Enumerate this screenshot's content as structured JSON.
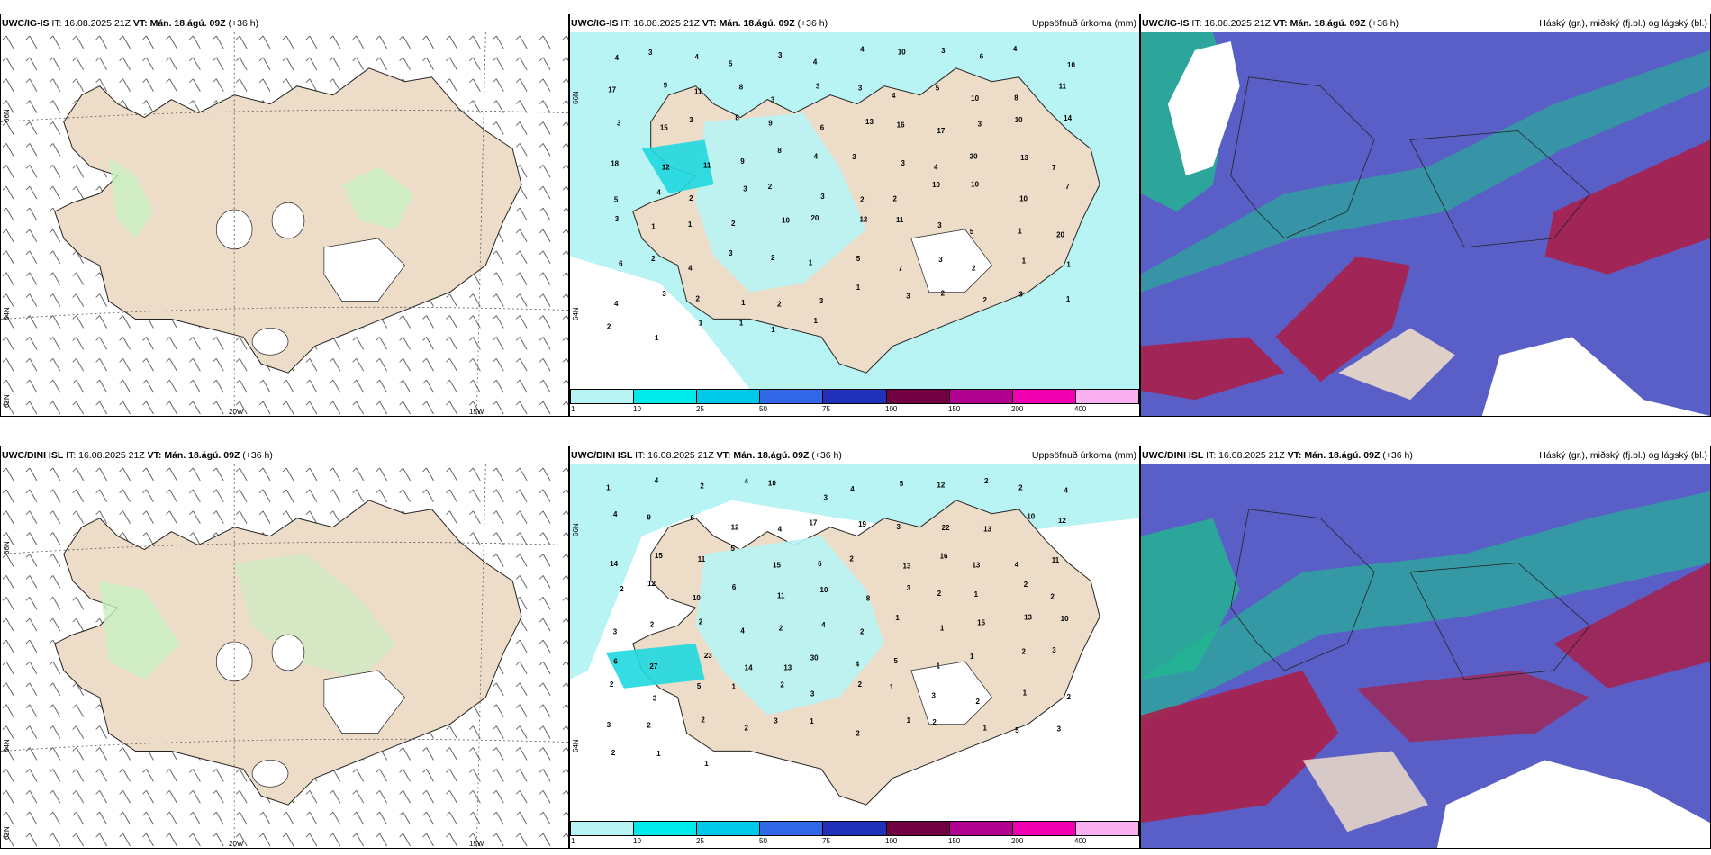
{
  "colors": {
    "land": "#ecdcc8",
    "sea_white": "#ffffff",
    "precip_light": "#b8f4f4",
    "green_precip": "#c8f0c0",
    "cloud_low": "#5a5fc8",
    "cloud_mid": "#20b890",
    "cloud_high": "#a8204a"
  },
  "rows": [
    {
      "panels": [
        {
          "type": "wind",
          "model": "UWC/IG-IS",
          "it": "IT: 16.08.2025 21Z",
          "vt": "VT: Mán. 18.ágú. 09Z",
          "lead": "(+36 h)",
          "right_title": "",
          "lat_labels": [
            "66N",
            "64N",
            "62N"
          ],
          "lon_labels": [
            "20W",
            "15W"
          ]
        },
        {
          "type": "precip",
          "model": "UWC/IG-IS",
          "it": "IT: 16.08.2025 21Z",
          "vt": "VT: Mán. 18.ágú. 09Z",
          "lead": "(+36 h)",
          "right_title": "Uppsöfnuð úrkoma (mm)",
          "lat_labels": [
            "66N",
            "64N"
          ],
          "legend_ticks": [
            "1",
            "10",
            "25",
            "50",
            "75",
            "100",
            "150",
            "200",
            "400"
          ],
          "values": [
            "4",
            "3",
            "4",
            "5",
            "3",
            "4",
            "4",
            "10",
            "3",
            "6",
            "4",
            "10",
            "17",
            "9",
            "11",
            "8",
            "3",
            "3",
            "3",
            "4",
            "5",
            "10",
            "8",
            "11",
            "3",
            "15",
            "3",
            "8",
            "9",
            "6",
            "13",
            "16",
            "17",
            "3",
            "10",
            "14",
            "18",
            "12",
            "11",
            "9",
            "8",
            "4",
            "3",
            "3",
            "4",
            "20",
            "13",
            "7",
            "5",
            "4",
            "2",
            "3",
            "2",
            "3",
            "2",
            "2",
            "10",
            "10",
            "10",
            "7",
            "3",
            "1",
            "1",
            "2",
            "10",
            "20",
            "12",
            "11",
            "3",
            "5",
            "1",
            "20",
            "6",
            "2",
            "4",
            "3",
            "2",
            "1",
            "5",
            "7",
            "3",
            "2",
            "1",
            "1",
            "4",
            "3",
            "2",
            "1",
            "2",
            "3",
            "1",
            "3",
            "2",
            "2",
            "3",
            "1",
            "2",
            "1",
            "1",
            "1",
            "1",
            "1"
          ]
        },
        {
          "type": "cloud",
          "model": "UWC/IG-IS",
          "it": "IT: 16.08.2025 21Z",
          "vt": "VT: Mán. 18.ágú. 09Z",
          "lead": "(+36 h)",
          "right_title": "Háský (gr.), miðský (fj.bl.) og lágský (bl.)"
        }
      ]
    },
    {
      "panels": [
        {
          "type": "wind",
          "model": "UWC/DINI ISL",
          "it": "IT: 16.08.2025 21Z",
          "vt": "VT: Mán. 18.ágú. 09Z",
          "lead": "(+36 h)",
          "right_title": "",
          "lat_labels": [
            "66N",
            "64N",
            "62N"
          ],
          "lon_labels": [
            "20W",
            "15W"
          ]
        },
        {
          "type": "precip",
          "model": "UWC/DINI ISL",
          "it": "IT: 16.08.2025 21Z",
          "vt": "VT: Mán. 18.ágú. 09Z",
          "lead": "(+36 h)",
          "right_title": "Uppsöfnuð úrkoma (mm)",
          "lat_labels": [
            "66N",
            "64N"
          ],
          "legend_ticks": [
            "1",
            "10",
            "25",
            "50",
            "75",
            "100",
            "150",
            "200",
            "400"
          ],
          "values": [
            "1",
            "4",
            "2",
            "4",
            "10",
            "3",
            "4",
            "5",
            "12",
            "2",
            "2",
            "4",
            "4",
            "9",
            "6",
            "12",
            "4",
            "17",
            "19",
            "3",
            "22",
            "13",
            "10",
            "12",
            "14",
            "15",
            "11",
            "5",
            "15",
            "6",
            "2",
            "13",
            "16",
            "13",
            "4",
            "11",
            "2",
            "12",
            "10",
            "6",
            "11",
            "10",
            "8",
            "3",
            "2",
            "1",
            "2",
            "2",
            "3",
            "2",
            "2",
            "4",
            "2",
            "4",
            "2",
            "1",
            "1",
            "15",
            "13",
            "10",
            "6",
            "27",
            "23",
            "14",
            "13",
            "30",
            "4",
            "5",
            "1",
            "1",
            "2",
            "3",
            "2",
            "3",
            "5",
            "1",
            "2",
            "3",
            "2",
            "1",
            "3",
            "2",
            "1",
            "2",
            "3",
            "2",
            "2",
            "2",
            "3",
            "1",
            "2",
            "1",
            "2",
            "1",
            "5",
            "3",
            "2",
            "1",
            "1"
          ]
        },
        {
          "type": "cloud",
          "model": "UWC/DINI ISL",
          "it": "IT: 16.08.2025 21Z",
          "vt": "VT: Mán. 18.ágú. 09Z",
          "lead": "(+36 h)",
          "right_title": "Háský (gr.), miðský (fj.bl.) og lágský (bl.)"
        }
      ]
    }
  ]
}
